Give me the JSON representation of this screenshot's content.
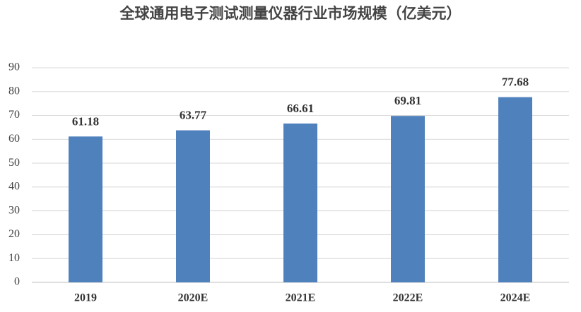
{
  "chart_data": {
    "type": "bar",
    "title": "全球通用电子测试测量仪器行业市场规模（亿美元）",
    "categories": [
      "2019",
      "2020E",
      "2021E",
      "2022E",
      "2024E"
    ],
    "values": [
      61.18,
      63.77,
      66.61,
      69.81,
      77.68
    ],
    "color": "#4f81bd",
    "ylim": [
      0,
      90
    ],
    "yticks": [
      0,
      10,
      20,
      30,
      40,
      50,
      60,
      70,
      80,
      90
    ],
    "grid": true
  }
}
